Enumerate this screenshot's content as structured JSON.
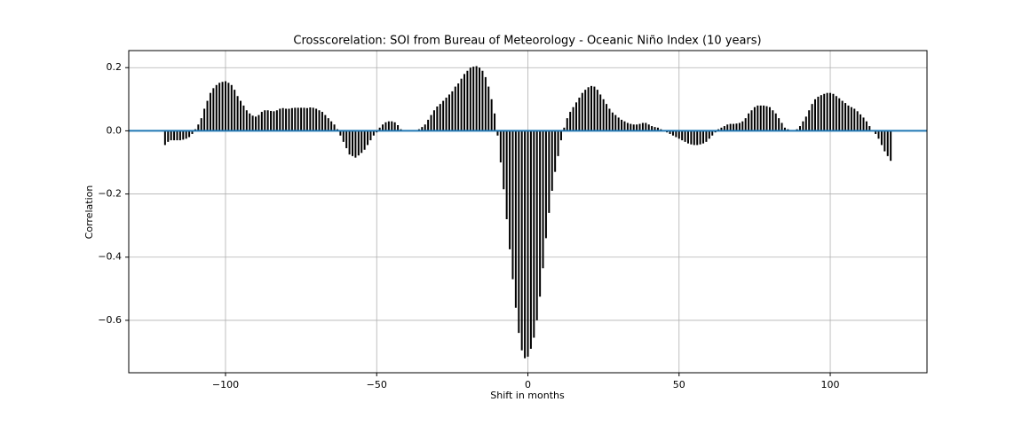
{
  "chart_data": {
    "type": "bar",
    "title": "Crosscorelation: SOI from Bureau of Meteorology - Oceanic Niño Index (10 years)",
    "x_label": "Shift in months",
    "y_label": "Correlation",
    "color": "#000000",
    "grid": true,
    "x": [
      -120,
      -119,
      -118,
      -117,
      -116,
      -115,
      -114,
      -113,
      -112,
      -111,
      -110,
      -109,
      -108,
      -107,
      -106,
      -105,
      -104,
      -103,
      -102,
      -101,
      -100,
      -99,
      -98,
      -97,
      -96,
      -95,
      -94,
      -93,
      -92,
      -91,
      -90,
      -89,
      -88,
      -87,
      -86,
      -85,
      -84,
      -83,
      -82,
      -81,
      -80,
      -79,
      -78,
      -77,
      -76,
      -75,
      -74,
      -73,
      -72,
      -71,
      -70,
      -69,
      -68,
      -67,
      -66,
      -65,
      -64,
      -63,
      -62,
      -61,
      -60,
      -59,
      -58,
      -57,
      -56,
      -55,
      -54,
      -53,
      -52,
      -51,
      -50,
      -49,
      -48,
      -47,
      -46,
      -45,
      -44,
      -43,
      -42,
      -41,
      -40,
      -39,
      -38,
      -37,
      -36,
      -35,
      -34,
      -33,
      -32,
      -31,
      -30,
      -29,
      -28,
      -27,
      -26,
      -25,
      -24,
      -23,
      -22,
      -21,
      -20,
      -19,
      -18,
      -17,
      -16,
      -15,
      -14,
      -13,
      -12,
      -11,
      -10,
      -9,
      -8,
      -7,
      -6,
      -5,
      -4,
      -3,
      -2,
      -1,
      0,
      1,
      2,
      3,
      4,
      5,
      6,
      7,
      8,
      9,
      10,
      11,
      12,
      13,
      14,
      15,
      16,
      17,
      18,
      19,
      20,
      21,
      22,
      23,
      24,
      25,
      26,
      27,
      28,
      29,
      30,
      31,
      32,
      33,
      34,
      35,
      36,
      37,
      38,
      39,
      40,
      41,
      42,
      43,
      44,
      45,
      46,
      47,
      48,
      49,
      50,
      51,
      52,
      53,
      54,
      55,
      56,
      57,
      58,
      59,
      60,
      61,
      62,
      63,
      64,
      65,
      66,
      67,
      68,
      69,
      70,
      71,
      72,
      73,
      74,
      75,
      76,
      77,
      78,
      79,
      80,
      81,
      82,
      83,
      84,
      85,
      86,
      87,
      88,
      89,
      90,
      91,
      92,
      93,
      94,
      95,
      96,
      97,
      98,
      99,
      100,
      101,
      102,
      103,
      104,
      105,
      106,
      107,
      108,
      109,
      110,
      111,
      112,
      113,
      114,
      115,
      116,
      117,
      118,
      119,
      120
    ],
    "values": [
      -0.045,
      -0.035,
      -0.03,
      -0.03,
      -0.03,
      -0.03,
      -0.028,
      -0.025,
      -0.02,
      -0.01,
      0.005,
      0.02,
      0.04,
      0.07,
      0.095,
      0.12,
      0.135,
      0.145,
      0.152,
      0.155,
      0.157,
      0.152,
      0.145,
      0.13,
      0.11,
      0.095,
      0.08,
      0.065,
      0.055,
      0.048,
      0.045,
      0.05,
      0.06,
      0.065,
      0.065,
      0.063,
      0.062,
      0.065,
      0.07,
      0.072,
      0.07,
      0.07,
      0.072,
      0.073,
      0.073,
      0.073,
      0.073,
      0.072,
      0.074,
      0.073,
      0.07,
      0.065,
      0.06,
      0.05,
      0.04,
      0.03,
      0.02,
      0.005,
      -0.015,
      -0.035,
      -0.055,
      -0.075,
      -0.08,
      -0.085,
      -0.078,
      -0.07,
      -0.06,
      -0.045,
      -0.03,
      -0.015,
      -0.005,
      0.01,
      0.02,
      0.027,
      0.03,
      0.03,
      0.027,
      0.018,
      0.005,
      0.002,
      0,
      0,
      0,
      0,
      0.005,
      0.012,
      0.02,
      0.035,
      0.05,
      0.065,
      0.077,
      0.085,
      0.095,
      0.105,
      0.115,
      0.125,
      0.14,
      0.15,
      0.165,
      0.18,
      0.19,
      0.2,
      0.203,
      0.205,
      0.2,
      0.19,
      0.17,
      0.14,
      0.1,
      0.055,
      -0.015,
      -0.1,
      -0.185,
      -0.28,
      -0.375,
      -0.47,
      -0.56,
      -0.64,
      -0.695,
      -0.72,
      -0.715,
      -0.69,
      -0.655,
      -0.6,
      -0.525,
      -0.435,
      -0.34,
      -0.26,
      -0.19,
      -0.13,
      -0.08,
      -0.03,
      0.01,
      0.04,
      0.06,
      0.075,
      0.09,
      0.105,
      0.12,
      0.13,
      0.138,
      0.142,
      0.14,
      0.13,
      0.115,
      0.1,
      0.085,
      0.07,
      0.058,
      0.05,
      0.042,
      0.035,
      0.03,
      0.025,
      0.022,
      0.02,
      0.02,
      0.022,
      0.025,
      0.025,
      0.02,
      0.015,
      0.012,
      0.01,
      0.005,
      0,
      -0.005,
      -0.01,
      -0.015,
      -0.02,
      -0.025,
      -0.03,
      -0.035,
      -0.04,
      -0.043,
      -0.045,
      -0.045,
      -0.043,
      -0.04,
      -0.035,
      -0.025,
      -0.015,
      -0.005,
      0.005,
      0.01,
      0.015,
      0.02,
      0.022,
      0.022,
      0.023,
      0.025,
      0.03,
      0.04,
      0.055,
      0.065,
      0.075,
      0.08,
      0.08,
      0.08,
      0.078,
      0.075,
      0.065,
      0.055,
      0.04,
      0.025,
      0.01,
      0.005,
      0,
      0,
      0.005,
      0.015,
      0.03,
      0.045,
      0.065,
      0.085,
      0.1,
      0.108,
      0.113,
      0.117,
      0.12,
      0.12,
      0.117,
      0.11,
      0.103,
      0.095,
      0.088,
      0.08,
      0.075,
      0.07,
      0.062,
      0.052,
      0.042,
      0.03,
      0.015,
      0.002,
      -0.01,
      -0.025,
      -0.045,
      -0.065,
      -0.08,
      -0.095
    ],
    "xlim": [
      -132,
      132
    ],
    "ylim": [
      -0.766,
      0.254
    ],
    "xticks": [
      {
        "value": -100,
        "label": "−100"
      },
      {
        "value": -50,
        "label": "−50"
      },
      0,
      50,
      100
    ],
    "yticks": [
      {
        "value": 0.2,
        "label": "0.2"
      },
      {
        "value": 0.0,
        "label": "0.0"
      },
      {
        "value": -0.2,
        "label": "−0.2"
      },
      {
        "value": -0.4,
        "label": "−0.4"
      },
      {
        "value": -0.6,
        "label": "−0.6"
      }
    ]
  }
}
